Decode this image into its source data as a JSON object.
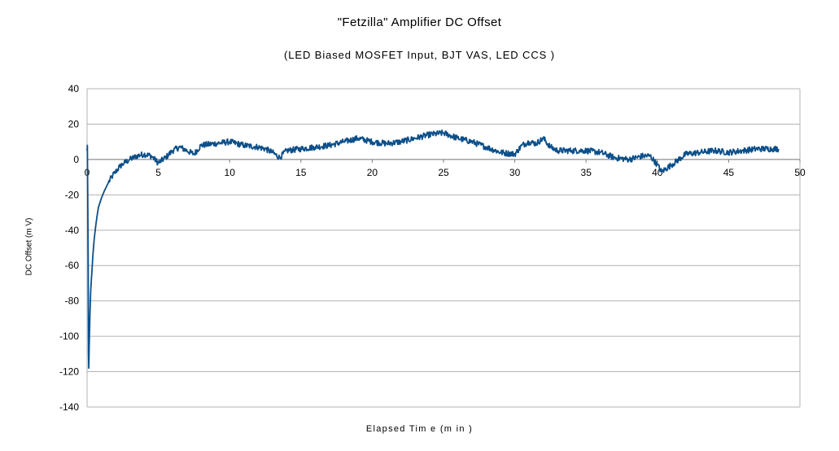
{
  "chart_data": {
    "type": "line",
    "title": "\"Fetzilla\" Amplifier DC Offset",
    "subtitle": "(LED Biased MOSFET Input, BJT VAS, LED CCS )",
    "xlabel": "Elapsed Tim e (m in )",
    "ylabel": "DC Offset (m V)",
    "xlim": [
      0,
      50
    ],
    "ylim": [
      -140,
      40
    ],
    "xticks": [
      0,
      5,
      10,
      15,
      20,
      25,
      30,
      35,
      40,
      45,
      50
    ],
    "yticks": [
      40,
      20,
      0,
      -20,
      -40,
      -60,
      -80,
      -100,
      -120,
      -140
    ],
    "grid": true,
    "legend": "none",
    "line_color": "#0b4f8a",
    "series": [
      {
        "x": [
          0,
          0.02,
          0.05,
          0.08,
          0.1,
          0.12,
          0.15,
          0.2,
          0.25,
          0.3,
          0.35,
          0.4,
          0.5,
          0.6,
          0.7,
          0.8,
          1.0,
          1.2,
          1.5,
          1.8,
          2.0,
          2.3,
          2.6,
          3.0,
          3.5,
          4.0,
          4.5,
          5.0,
          5.5,
          6.0,
          6.5,
          7.0,
          7.5,
          8.0,
          9.0,
          10.0,
          11.0,
          12.0,
          12.5,
          13.0,
          13.5,
          14.0,
          15.0,
          16.0,
          17.0,
          18.0,
          19.0,
          20.0,
          21.0,
          22.0,
          23.0,
          24.0,
          25.0,
          26.0,
          27.0,
          28.0,
          29.0,
          30.0,
          30.5,
          31.0,
          31.5,
          32.0,
          32.5,
          33.0,
          34.0,
          35.0,
          36.0,
          37.0,
          38.0,
          39.0,
          39.5,
          40.0,
          40.3,
          41.0,
          42.0,
          43.0,
          44.0,
          45.0,
          46.0,
          47.0,
          48.0,
          48.5
        ],
        "y": [
          5,
          8,
          -25,
          -60,
          -110,
          -118,
          -105,
          -88,
          -75,
          -68,
          -62,
          -55,
          -45,
          -38,
          -32,
          -27,
          -22,
          -18,
          -13,
          -9,
          -7,
          -4,
          -2,
          0,
          2,
          3,
          2,
          -2,
          1,
          5,
          7,
          5,
          3,
          8,
          9,
          10,
          8,
          7,
          6,
          4,
          1,
          5,
          6,
          7,
          8,
          10,
          12,
          10,
          9,
          10,
          12,
          14,
          15,
          12,
          10,
          7,
          4,
          3,
          8,
          10,
          9,
          12,
          7,
          5,
          5,
          5,
          4,
          1,
          0,
          2,
          2,
          -3,
          -7,
          -3,
          3,
          4,
          5,
          4,
          5,
          6,
          6,
          6
        ]
      }
    ]
  }
}
